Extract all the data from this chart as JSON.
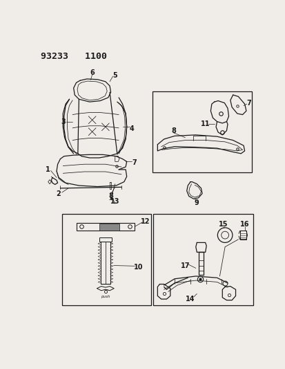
{
  "title": "93233   1100",
  "bg_color": "#f0ede8",
  "line_color": "#1a1a1a",
  "title_fontsize": 9.5,
  "label_fontsize": 7,
  "fig_w": 4.14,
  "fig_h": 5.33,
  "dpi": 100
}
